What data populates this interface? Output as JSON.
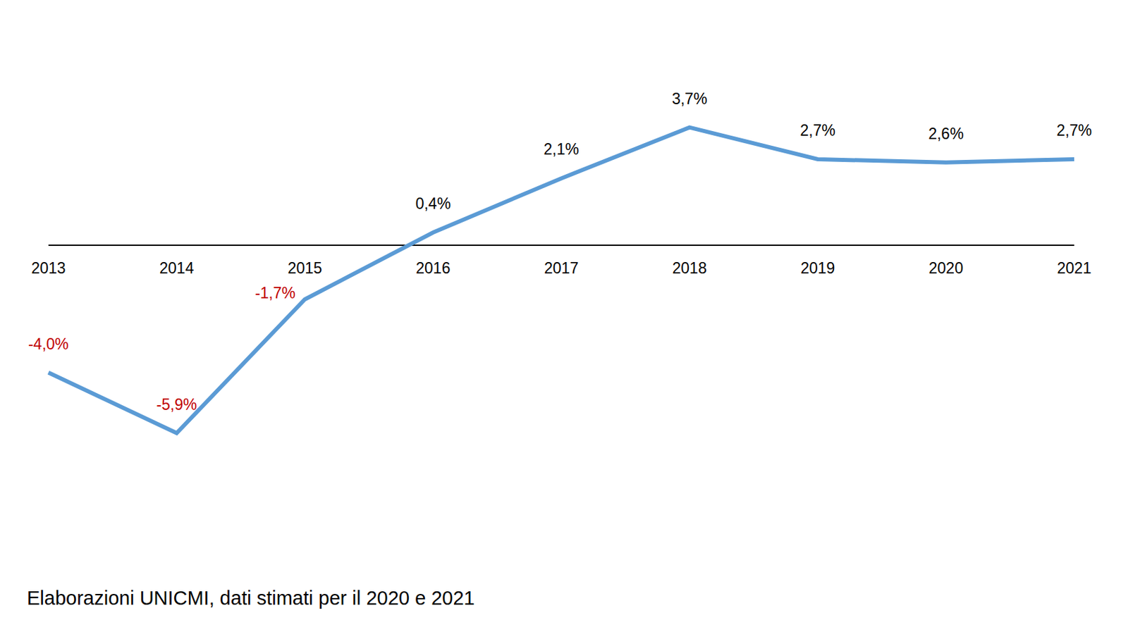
{
  "chart_data": {
    "type": "line",
    "categories": [
      "2013",
      "2014",
      "2015",
      "2016",
      "2017",
      "2018",
      "2019",
      "2020",
      "2021"
    ],
    "values": [
      -4.0,
      -5.9,
      -1.7,
      0.4,
      2.1,
      3.7,
      2.7,
      2.6,
      2.7
    ],
    "value_labels": [
      "-4,0%",
      "-5,9%",
      "-1,7%",
      "0,4%",
      "2,1%",
      "3,7%",
      "2,7%",
      "2,6%",
      "2,7%"
    ],
    "color": "#5b9bd5",
    "ylim": [
      -8,
      5
    ],
    "data_labels": true,
    "tick_labels": "x",
    "annotations": [
      "Elaborazioni UNICMI, dati stimati per il 2020 e 2021"
    ]
  }
}
